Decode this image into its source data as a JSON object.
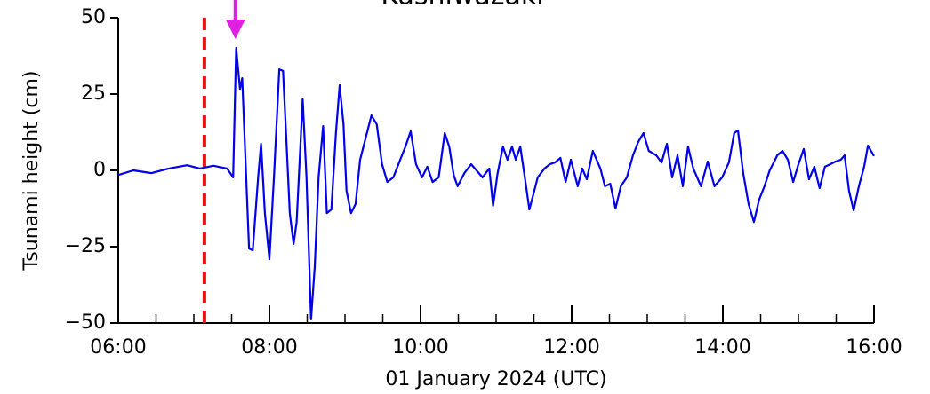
{
  "chart_data": {
    "type": "line",
    "title": "Kashiwazaki",
    "xlabel": "01 January 2024 (UTC)",
    "ylabel": "Tsunami height (cm)",
    "xlim": [
      6,
      16
    ],
    "ylim": [
      -50,
      50
    ],
    "xticks": [
      {
        "value": 6,
        "label": "06:00"
      },
      {
        "value": 8,
        "label": "08:00"
      },
      {
        "value": 10,
        "label": "10:00"
      },
      {
        "value": 12,
        "label": "12:00"
      },
      {
        "value": 14,
        "label": "14:00"
      },
      {
        "value": 16,
        "label": "16:00"
      }
    ],
    "xminorticks": [
      6.5,
      7,
      7.5,
      8.5,
      9,
      9.5,
      10.5,
      11,
      11.5,
      12.5,
      13,
      13.5,
      14.5,
      15,
      15.5
    ],
    "yticks": [
      50,
      25,
      0,
      {
        "value": -25,
        "label": "−25"
      },
      {
        "value": -50,
        "label": "−50"
      }
    ],
    "event_line_x": 7.14,
    "event_line_color": "#ee1111",
    "arrival_arrow_x": 7.55,
    "arrival_arrow_color": "#e020e0",
    "series": [
      {
        "color": "#0000ee",
        "x": [
          6.0,
          6.2,
          6.44,
          6.67,
          6.91,
          7.08,
          7.26,
          7.44,
          7.52,
          7.56,
          7.61,
          7.64,
          7.67,
          7.73,
          7.78,
          7.85,
          7.89,
          7.94,
          8.0,
          8.06,
          8.13,
          8.18,
          8.22,
          8.27,
          8.32,
          8.36,
          8.44,
          8.49,
          8.55,
          8.6,
          8.65,
          8.71,
          8.76,
          8.82,
          8.88,
          8.93,
          8.98,
          9.02,
          9.08,
          9.14,
          9.2,
          9.26,
          9.35,
          9.42,
          9.49,
          9.56,
          9.64,
          9.73,
          9.8,
          9.87,
          9.94,
          10.02,
          10.09,
          10.16,
          10.24,
          10.32,
          10.38,
          10.44,
          10.49,
          10.58,
          10.67,
          10.74,
          10.82,
          10.91,
          10.96,
          11.02,
          11.09,
          11.15,
          11.21,
          11.26,
          11.32,
          11.38,
          11.44,
          11.49,
          11.55,
          11.64,
          11.71,
          11.78,
          11.85,
          11.92,
          11.99,
          12.08,
          12.14,
          12.2,
          12.28,
          12.38,
          12.44,
          12.51,
          12.58,
          12.65,
          12.73,
          12.81,
          12.88,
          12.95,
          13.02,
          13.12,
          13.19,
          13.26,
          13.33,
          13.4,
          13.47,
          13.54,
          13.61,
          13.71,
          13.8,
          13.89,
          13.99,
          14.08,
          14.15,
          14.2,
          14.27,
          14.34,
          14.41,
          14.48,
          14.55,
          14.62,
          14.72,
          14.79,
          14.86,
          14.93,
          15.0,
          15.07,
          15.14,
          15.21,
          15.28,
          15.35,
          15.42,
          15.49,
          15.56,
          15.61,
          15.67,
          15.73,
          15.8,
          15.87,
          15.92,
          15.96,
          16.0
        ],
        "values": [
          -1.5,
          0,
          -0.9,
          0.6,
          1.7,
          0.6,
          1.5,
          0.6,
          -2.3,
          40.1,
          26.7,
          30.2,
          12.2,
          -25.6,
          -26.2,
          -2.3,
          8.7,
          -14.0,
          -29.1,
          -2.3,
          33.1,
          32.6,
          12.2,
          -14.0,
          -24.1,
          -16.9,
          23.3,
          -2.3,
          -48.8,
          -31.4,
          -2.3,
          14.5,
          -14.0,
          -12.8,
          12.2,
          27.9,
          15.1,
          -6.7,
          -14.0,
          -11.0,
          3.5,
          9.3,
          18.0,
          15.1,
          2.0,
          -3.8,
          -2.3,
          3.5,
          7.8,
          12.8,
          2.0,
          -2.3,
          1.2,
          -3.8,
          -2.3,
          12.2,
          7.8,
          -1.7,
          -5.2,
          -0.9,
          2.0,
          0,
          -2.3,
          0.6,
          -11.6,
          -0.9,
          7.8,
          3.5,
          7.8,
          3.5,
          7.8,
          -2.3,
          -12.8,
          -8.1,
          -2.3,
          0.6,
          2.0,
          2.6,
          4.1,
          -3.8,
          3.5,
          -5.2,
          0.6,
          -2.9,
          6.4,
          0.6,
          -5.2,
          -4.4,
          -12.5,
          -5.2,
          -2.3,
          4.9,
          9.3,
          12.2,
          6.4,
          4.9,
          2.6,
          8.7,
          -2.3,
          4.9,
          -5.2,
          7.8,
          0.6,
          -5.2,
          2.9,
          -5.2,
          -2.3,
          2.6,
          12.2,
          13.1,
          -0.9,
          -11.0,
          -16.9,
          -9.6,
          -5.2,
          0,
          4.9,
          6.4,
          3.5,
          -3.8,
          2.0,
          7.0,
          -2.9,
          1.2,
          -5.8,
          1.2,
          2.0,
          2.9,
          3.5,
          4.9,
          -6.7,
          -13.1,
          -5.2,
          1.2,
          8.1,
          6.4,
          4.7
        ]
      }
    ]
  }
}
